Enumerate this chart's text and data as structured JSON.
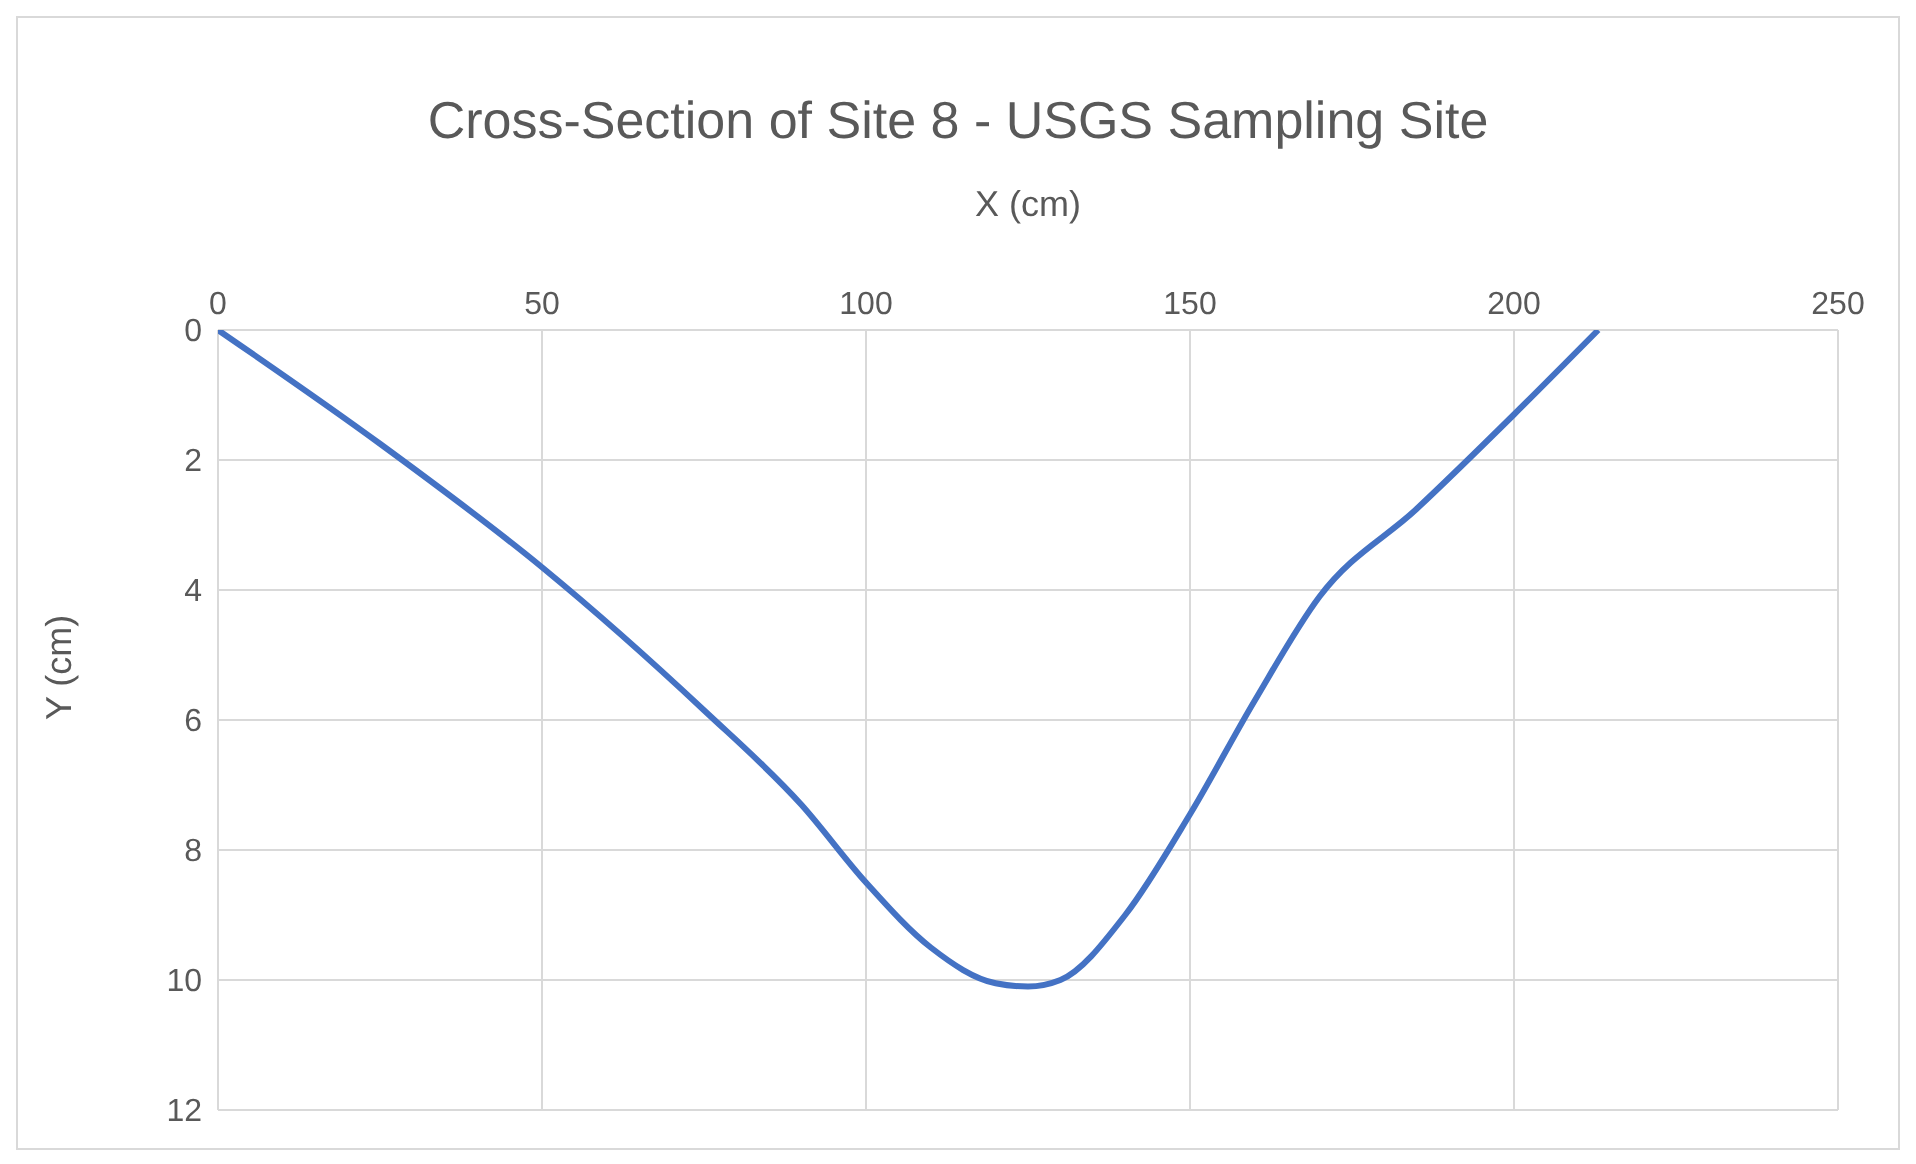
{
  "chart_data": {
    "type": "line",
    "title": "Cross-Section of Site 8 - USGS Sampling Site",
    "xlabel": "X (cm)",
    "ylabel": "Y (cm)",
    "x": [
      0,
      25,
      50,
      75,
      90,
      100,
      110,
      120,
      125,
      130,
      140,
      150,
      160,
      170,
      185,
      200,
      213
    ],
    "series": [
      {
        "color": "#4472c4",
        "values": [
          0,
          1.75,
          3.65,
          5.85,
          7.3,
          8.5,
          9.5,
          10.05,
          10.1,
          10.0,
          9.0,
          7.45,
          5.7,
          4.1,
          2.75,
          1.3,
          0
        ]
      }
    ],
    "xlim": [
      0,
      250
    ],
    "xticks": [
      0,
      50,
      100,
      150,
      200,
      250
    ],
    "ylim": [
      12,
      0
    ],
    "yticks": [
      0,
      2,
      4,
      6,
      8,
      10,
      12
    ],
    "grid": true,
    "legend": false,
    "marker": "none",
    "line_style": "solid"
  }
}
